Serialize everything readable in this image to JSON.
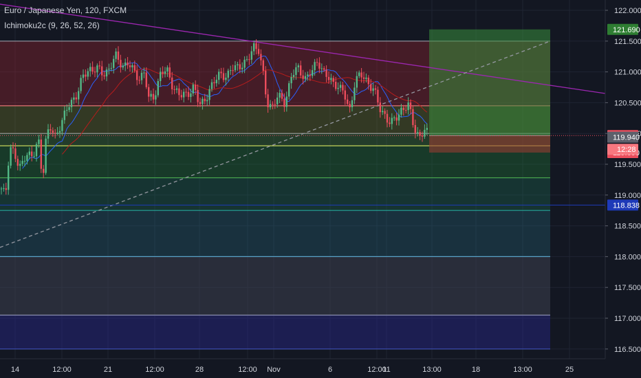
{
  "header": {
    "symbol_title": "Euro / Japanese Yen, 120, FXCM",
    "indicator": "Ichimoku2c (9, 26, 52, 26)"
  },
  "colors": {
    "background": "#131722",
    "grid": "#1f2433",
    "axis_text": "#d1d4dc",
    "up_candle": "#53b987",
    "down_candle": "#eb4d5c",
    "trendline": "#9c27b0",
    "dashed_line": "#9598a1"
  },
  "chart_data": {
    "type": "candlestick",
    "title": "Euro / Japanese Yen, 120, FXCM",
    "indicator": "Ichimoku2c (9, 26, 52, 26)",
    "ylim": [
      116.45,
      122.15
    ],
    "y_ticks": [
      "122.000",
      "121.500",
      "121.000",
      "120.500",
      "120.000",
      "119.500",
      "119.000",
      "118.500",
      "118.000",
      "117.500",
      "117.000",
      "116.500"
    ],
    "x_ticks": [
      "14",
      "12:00",
      "21",
      "12:00",
      "28",
      "12:00",
      "Nov",
      "6",
      "12:00",
      "11",
      "13:00",
      "18",
      "13:00",
      "25"
    ],
    "grid": true,
    "price_path": [
      [
        0,
        119.1
      ],
      [
        8,
        119.0
      ],
      [
        14,
        119.8
      ],
      [
        20,
        119.7
      ],
      [
        28,
        119.4
      ],
      [
        38,
        119.7
      ],
      [
        48,
        119.6
      ],
      [
        56,
        119.9
      ],
      [
        62,
        119.25
      ],
      [
        66,
        119.85
      ],
      [
        72,
        120.1
      ],
      [
        80,
        119.95
      ],
      [
        90,
        120.2
      ],
      [
        100,
        120.45
      ],
      [
        112,
        120.65
      ],
      [
        120,
        120.9
      ],
      [
        130,
        121.05
      ],
      [
        142,
        121.05
      ],
      [
        150,
        120.95
      ],
      [
        158,
        121.05
      ],
      [
        168,
        121.25
      ],
      [
        178,
        121.1
      ],
      [
        186,
        121.15
      ],
      [
        194,
        121.0
      ],
      [
        202,
        120.9
      ],
      [
        210,
        121.0
      ],
      [
        216,
        120.55
      ],
      [
        224,
        120.6
      ],
      [
        234,
        121.0
      ],
      [
        244,
        121.0
      ],
      [
        252,
        120.75
      ],
      [
        262,
        120.6
      ],
      [
        272,
        120.65
      ],
      [
        282,
        120.75
      ],
      [
        290,
        120.45
      ],
      [
        300,
        120.6
      ],
      [
        310,
        120.8
      ],
      [
        320,
        121.0
      ],
      [
        330,
        120.9
      ],
      [
        340,
        121.1
      ],
      [
        350,
        121.1
      ],
      [
        360,
        121.15
      ],
      [
        368,
        121.45
      ],
      [
        376,
        121.35
      ],
      [
        382,
        121.0
      ],
      [
        388,
        120.5
      ],
      [
        396,
        120.45
      ],
      [
        404,
        120.6
      ],
      [
        414,
        120.5
      ],
      [
        424,
        120.95
      ],
      [
        434,
        121.05
      ],
      [
        444,
        120.9
      ],
      [
        454,
        121.0
      ],
      [
        462,
        121.2
      ],
      [
        470,
        121.0
      ],
      [
        480,
        120.85
      ],
      [
        490,
        120.8
      ],
      [
        500,
        120.65
      ],
      [
        508,
        120.35
      ],
      [
        516,
        120.85
      ],
      [
        524,
        120.95
      ],
      [
        534,
        120.85
      ],
      [
        544,
        120.7
      ],
      [
        552,
        120.4
      ],
      [
        560,
        120.3
      ],
      [
        568,
        120.15
      ],
      [
        576,
        120.25
      ],
      [
        584,
        120.4
      ],
      [
        594,
        120.45
      ],
      [
        602,
        120.1
      ],
      [
        610,
        119.95
      ],
      [
        618,
        120.05
      ],
      [
        623,
        119.966
      ]
    ],
    "last_price_time": "12:28",
    "current_price": "119.966",
    "price_labels": [
      {
        "value": 121.69,
        "text": "121.690",
        "color": "#2e7d32"
      },
      {
        "value": 119.966,
        "text": "119.966",
        "color": "#eb4d5c"
      },
      {
        "value": 119.94,
        "text": "119.940",
        "color": "#5d606b"
      },
      {
        "value": 119.69,
        "text": "119.690",
        "color": "#eb4d5c"
      },
      {
        "value": 118.838,
        "text": "118.838",
        "color": "#1e3ab8"
      }
    ],
    "levels": [
      {
        "value": 121.5,
        "color": "#9598a1"
      },
      {
        "value": 120.45,
        "color": "#e57373"
      },
      {
        "value": 120.0,
        "color": "#9e9e9e"
      },
      {
        "value": 119.8,
        "color": "#c6d45a"
      },
      {
        "value": 119.28,
        "color": "#4caf50"
      },
      {
        "value": 118.75,
        "color": "#26a69a"
      },
      {
        "value": 118.0,
        "color": "#5aa3c8"
      },
      {
        "value": 117.05,
        "color": "#8a8fb0"
      },
      {
        "value": 116.5,
        "color": "#3f51b5"
      }
    ],
    "zones": [
      {
        "from": 120.45,
        "to": 121.5,
        "color": "rgba(178,40,51,0.32)"
      },
      {
        "from": 120.0,
        "to": 120.45,
        "color": "rgba(120,130,40,0.32)"
      },
      {
        "from": 119.8,
        "to": 120.0,
        "color": "rgba(70,140,60,0.32)"
      },
      {
        "from": 119.28,
        "to": 119.8,
        "color": "rgba(38,140,60,0.30)"
      },
      {
        "from": 118.75,
        "to": 119.28,
        "color": "rgba(30,120,90,0.30)"
      },
      {
        "from": 118.0,
        "to": 118.75,
        "color": "rgba(40,110,130,0.30)"
      },
      {
        "from": 117.05,
        "to": 118.0,
        "color": "rgba(60,64,78,0.55)"
      },
      {
        "from": 116.5,
        "to": 117.05,
        "color": "rgba(40,40,140,0.45)"
      }
    ],
    "trendlines": [
      {
        "x1": 0,
        "y1": 122.1,
        "x2": 880,
        "y2": 120.65,
        "color": "#9c27b0",
        "dashed": false
      },
      {
        "x1": 0,
        "y1": 118.15,
        "x2": 800,
        "y2": 121.5,
        "color": "#9598a1",
        "dashed": true
      }
    ],
    "position_tool": {
      "x1": 624,
      "x2": 800,
      "target": 121.69,
      "entry": 119.966,
      "stop": 119.69
    }
  }
}
